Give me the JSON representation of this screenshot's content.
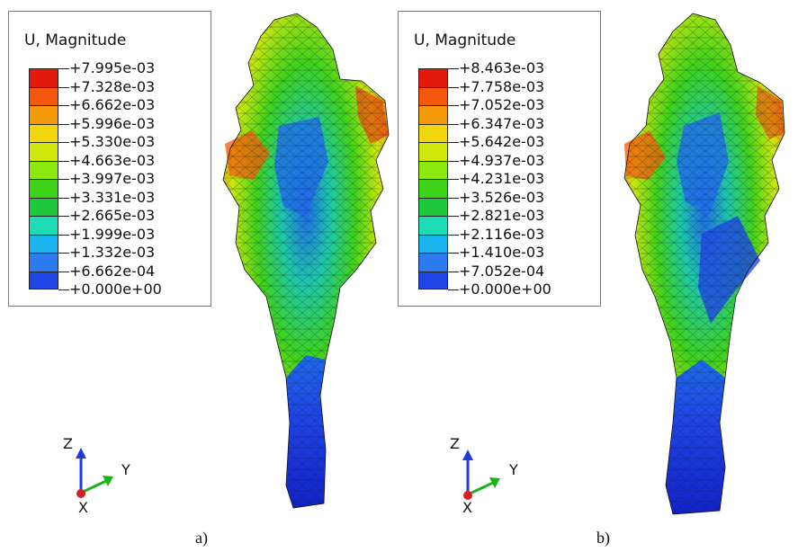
{
  "panels": [
    {
      "label": "a)",
      "legend": {
        "title": "U, Magnitude",
        "values": [
          "+7.995e-03",
          "+7.328e-03",
          "+6.662e-03",
          "+5.996e-03",
          "+5.330e-03",
          "+4.663e-03",
          "+3.997e-03",
          "+3.331e-03",
          "+2.665e-03",
          "+1.999e-03",
          "+1.332e-03",
          "+6.662e-04",
          "+0.000e+00"
        ]
      },
      "triad": {
        "z": "Z",
        "y": "Y",
        "x": "X"
      }
    },
    {
      "label": "b)",
      "legend": {
        "title": "U, Magnitude",
        "values": [
          "+8.463e-03",
          "+7.758e-03",
          "+7.052e-03",
          "+6.347e-03",
          "+5.642e-03",
          "+4.937e-03",
          "+4.231e-03",
          "+3.526e-03",
          "+2.821e-03",
          "+2.116e-03",
          "+1.410e-03",
          "+7.052e-04",
          "+0.000e+00"
        ]
      },
      "triad": {
        "z": "Z",
        "y": "Y",
        "x": "X"
      }
    }
  ],
  "colormap": [
    "#e41a0c",
    "#f2590a",
    "#f59a08",
    "#f2d60c",
    "#cfe80c",
    "#8de80e",
    "#3fd21a",
    "#1ec83c",
    "#1edcb4",
    "#1ab4ee",
    "#2c7cf0",
    "#1f45e6"
  ],
  "axis_colors": {
    "z": "#1f3bd8",
    "y": "#1bb21b",
    "x": "#d81f1f"
  }
}
